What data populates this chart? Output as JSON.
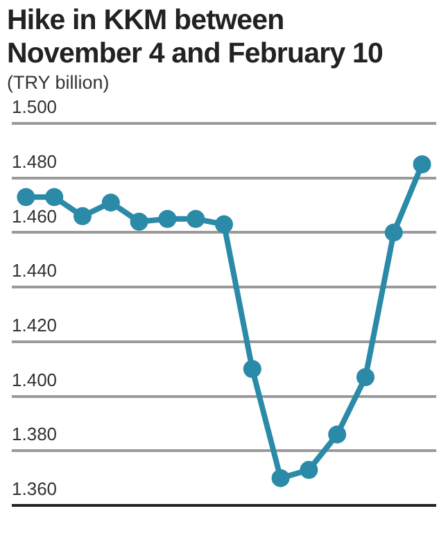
{
  "chart_data": {
    "type": "line",
    "title": "Hike in KKM between November 4 and February 10",
    "subtitle": "(TRY billion)",
    "categories": [
      null,
      null,
      null,
      null,
      null,
      null,
      null,
      null,
      null,
      null,
      null,
      null,
      null,
      null,
      null
    ],
    "series": [
      {
        "color": "#2a8aa8",
        "values": [
          1.473,
          1.473,
          1.466,
          1.471,
          1.464,
          1.465,
          1.465,
          1.463,
          1.41,
          1.37,
          1.373,
          1.386,
          1.407,
          1.46,
          1.485
        ]
      }
    ],
    "ylim": [
      1.36,
      1.5
    ],
    "yticks": [
      {
        "value": 1.36,
        "label": "1.360"
      },
      {
        "value": 1.38,
        "label": "1.380"
      },
      {
        "value": 1.4,
        "label": "1.400"
      },
      {
        "value": 1.42,
        "label": "1.420"
      },
      {
        "value": 1.44,
        "label": "1.440"
      },
      {
        "value": 1.46,
        "label": "1.460"
      },
      {
        "value": 1.48,
        "label": "1.480"
      },
      {
        "value": 1.5,
        "label": "1.500"
      }
    ],
    "grid": "y",
    "marker": "circle",
    "line_style": "solid",
    "legend": false
  }
}
